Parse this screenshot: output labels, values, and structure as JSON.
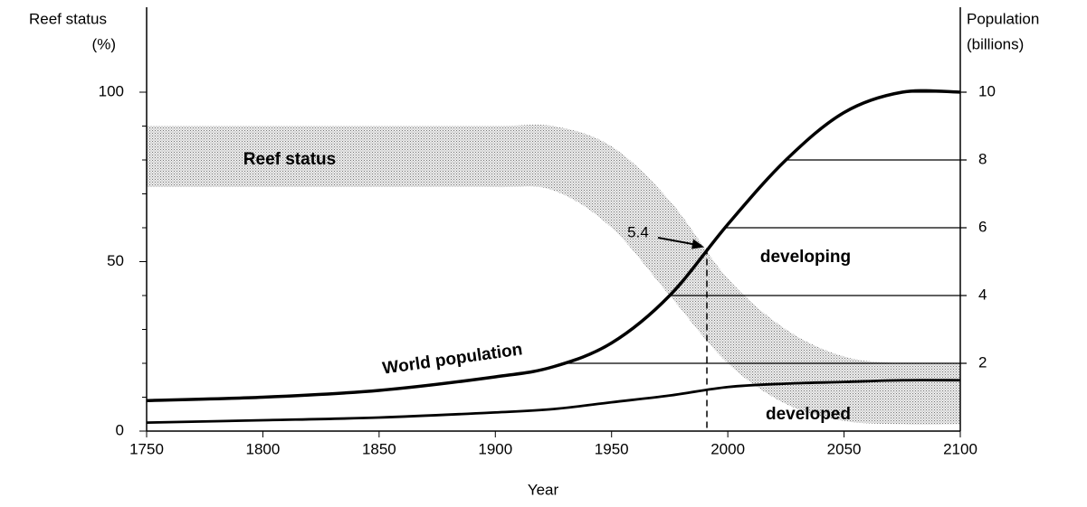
{
  "chart_data": {
    "type": "line",
    "x_label": "Year",
    "y_label": [
      "Reef status",
      "(%)"
    ],
    "y2_label": [
      "Population",
      "(billions)"
    ],
    "x": [
      1750,
      1800,
      1850,
      1900,
      1925,
      1950,
      1975,
      2000,
      2025,
      2050,
      2075,
      2100
    ],
    "series": [
      {
        "name": "Reef status",
        "kind": "band",
        "axis": "y",
        "color": "#b8b8b8",
        "upper": [
          90,
          90,
          90,
          90,
          90,
          84,
          68,
          45,
          30,
          22,
          20,
          20
        ],
        "lower": [
          72,
          72,
          72,
          72,
          71,
          60,
          40,
          20,
          8,
          3,
          2,
          2
        ]
      },
      {
        "name": "World population",
        "axis": "y2",
        "color": "#000000",
        "values": [
          0.9,
          1.0,
          1.2,
          1.6,
          1.9,
          2.6,
          4.0,
          6.1,
          8.0,
          9.4,
          10.0,
          10.0
        ]
      },
      {
        "name": "developed",
        "axis": "y2",
        "color": "#000000",
        "values": [
          0.25,
          0.32,
          0.4,
          0.55,
          0.65,
          0.85,
          1.05,
          1.3,
          1.4,
          1.45,
          1.5,
          1.5
        ]
      }
    ],
    "annotations": [
      {
        "text": "developing"
      },
      {
        "text": "5.4",
        "x": 1991,
        "y": 5.4
      }
    ],
    "xlim": [
      1750,
      2100
    ],
    "xticks": [
      1750,
      1800,
      1850,
      1900,
      1950,
      2000,
      2050,
      2100
    ],
    "ylim": [
      0,
      100
    ],
    "yticks": [
      0,
      50,
      100
    ],
    "yminor_ticks": [
      10,
      20,
      30,
      40,
      60,
      70,
      80,
      90
    ],
    "y2lim": [
      0,
      10
    ],
    "y2ticks": [
      2,
      4,
      6,
      8,
      10
    ]
  }
}
